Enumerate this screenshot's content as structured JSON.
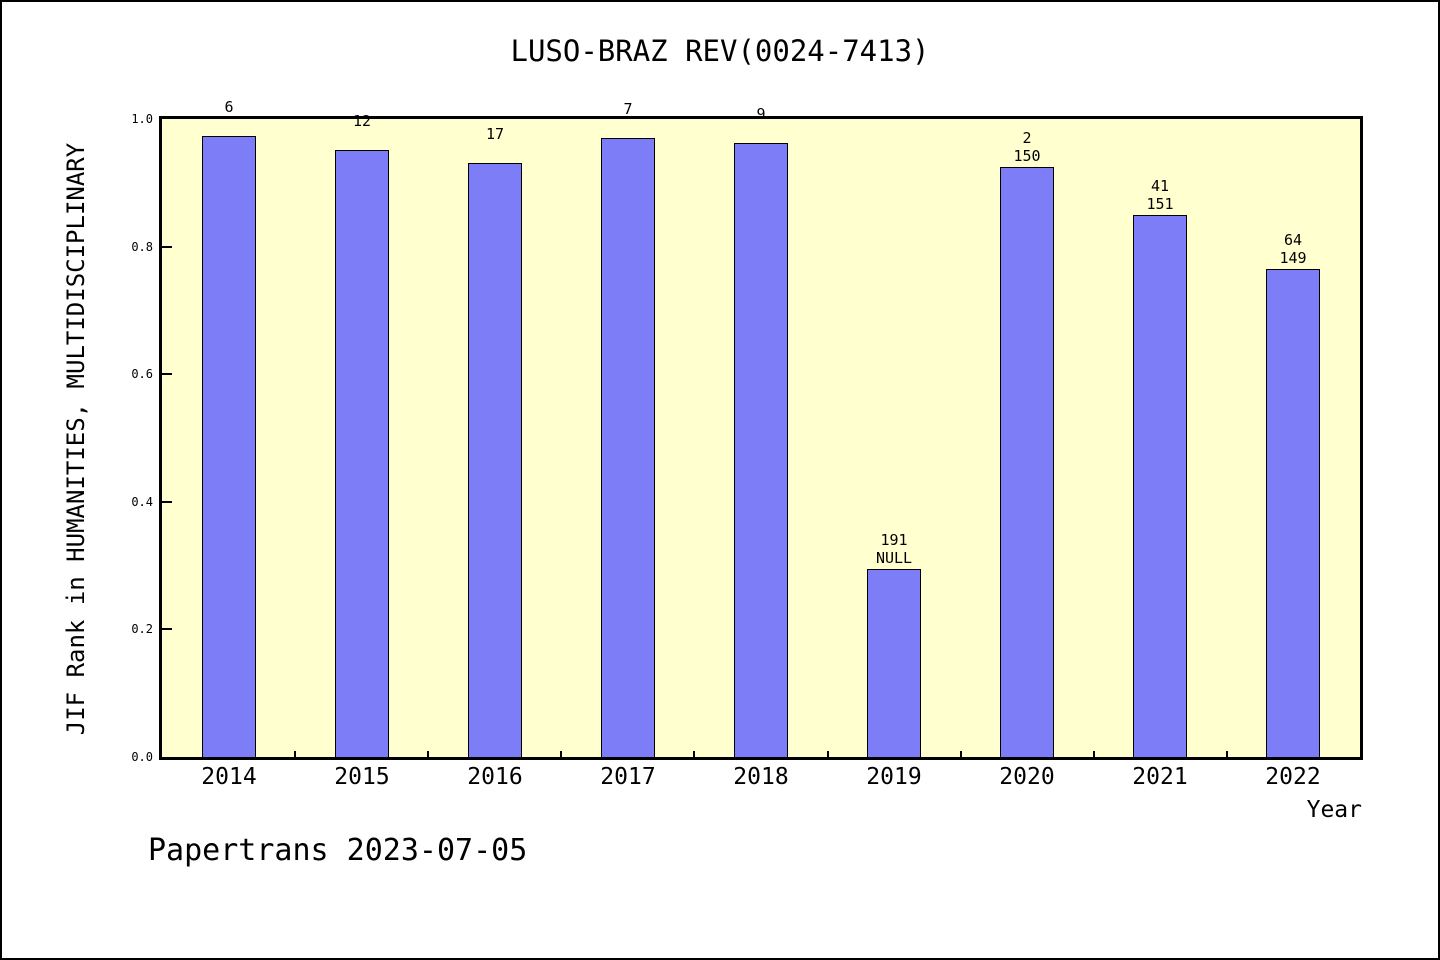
{
  "window": {
    "background_color": "#ffffff",
    "frame_border_color": "#000000"
  },
  "chart_data": {
    "type": "bar",
    "title": "LUSO-BRAZ REV(0024-7413)",
    "xlabel": "Year",
    "ylabel": "JIF Rank in HUMANITIES, MULTIDISCIPLINARY",
    "ylim": [
      0.0,
      1.0
    ],
    "ytick_labels": [
      "0.0",
      "0.2",
      "0.4",
      "0.6",
      "0.8",
      "1.0"
    ],
    "grid": false,
    "legend": null,
    "categories": [
      "2014",
      "2015",
      "2016",
      "2017",
      "2018",
      "2019",
      "2020",
      "2021",
      "2022"
    ],
    "series": [
      {
        "name": "JIF Rank (axis fraction, read from bar heights)",
        "values": [
          0.974,
          0.951,
          0.931,
          0.971,
          0.962,
          0.295,
          0.925,
          0.85,
          0.765
        ]
      }
    ],
    "bar_annotations": [
      {
        "rank": "6",
        "total": ""
      },
      {
        "rank": "12",
        "total": ""
      },
      {
        "rank": "17",
        "total": ""
      },
      {
        "rank": "7",
        "total": ""
      },
      {
        "rank": "9",
        "total": ""
      },
      {
        "rank": "191",
        "total": "NULL"
      },
      {
        "rank": "2",
        "total": "150"
      },
      {
        "rank": "41",
        "total": "151"
      },
      {
        "rank": "64",
        "total": "149"
      }
    ],
    "colors": {
      "bar_fill": "#7d7df8",
      "bar_edge": "#000000",
      "plot_background": "#ffffd0",
      "axis": "#000000",
      "text": "#000000"
    }
  },
  "footer": {
    "text": "Papertrans 2023-07-05"
  }
}
